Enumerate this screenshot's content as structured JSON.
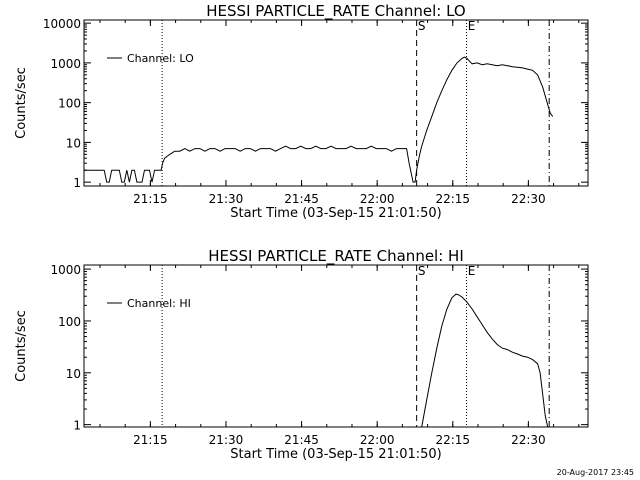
{
  "timestamp": "20-Aug-2017 23:45",
  "chart_data": [
    {
      "type": "line",
      "title": "HESSI PARTICLE_RATE Channel: LO",
      "xlabel": "Start Time (03-Sep-15 21:01:50)",
      "ylabel": "Counts/sec",
      "y_scale": "log",
      "xlim_minutes": [
        0,
        100
      ],
      "ylim": [
        0.8,
        12000
      ],
      "x_ticks": [
        {
          "minute": 13.17,
          "label": "21:15"
        },
        {
          "minute": 28.17,
          "label": "21:30"
        },
        {
          "minute": 43.17,
          "label": "21:45"
        },
        {
          "minute": 58.17,
          "label": "22:00"
        },
        {
          "minute": 73.17,
          "label": "22:15"
        },
        {
          "minute": 88.17,
          "label": "22:30"
        }
      ],
      "y_ticks": [
        {
          "value": 1,
          "label": "1"
        },
        {
          "value": 10,
          "label": "10"
        },
        {
          "value": 100,
          "label": "100"
        },
        {
          "value": 1000,
          "label": "1000"
        },
        {
          "value": 10000,
          "label": "10000"
        }
      ],
      "legend": {
        "label": "Channel: LO",
        "position": "top-left"
      },
      "markers": [
        {
          "minute": 15.5,
          "style": "dotted",
          "label": ""
        },
        {
          "minute": 66.0,
          "style": "dashed",
          "label": "S"
        },
        {
          "minute": 75.9,
          "style": "dotted",
          "label": "E"
        },
        {
          "minute": 92.3,
          "style": "dashdot",
          "label": ""
        }
      ],
      "series": [
        {
          "name": "Channel: LO",
          "x": [
            0,
            1,
            2,
            3,
            4,
            4.5,
            5,
            5.5,
            6,
            6.5,
            7,
            7.5,
            8,
            8.5,
            9,
            9.5,
            10,
            10.5,
            11,
            11.5,
            12,
            12.5,
            13,
            13.5,
            14,
            15.3,
            15.6,
            16,
            17,
            18,
            19,
            20,
            21,
            22,
            23,
            24,
            25,
            26,
            27,
            28,
            29,
            30,
            31,
            32,
            33,
            34,
            35,
            36,
            37,
            38,
            39,
            40,
            41,
            42,
            43,
            44,
            45,
            46,
            47,
            48,
            49,
            50,
            51,
            52,
            53,
            54,
            55,
            56,
            57,
            58,
            59,
            60,
            61,
            62,
            63,
            64,
            64.5,
            65,
            65.3,
            65.7,
            66,
            66.6,
            67,
            68,
            69,
            70,
            71,
            72,
            73,
            74,
            75,
            75.5,
            76,
            76.5,
            77,
            78,
            79,
            80,
            81,
            82,
            83,
            84,
            85,
            86,
            87,
            88,
            89,
            90,
            91,
            92,
            92.5,
            93
          ],
          "y": [
            2,
            2,
            2,
            2,
            2,
            1,
            1,
            2,
            2,
            2,
            2,
            1,
            1,
            2,
            1,
            2,
            2,
            1,
            1,
            1,
            2,
            2,
            2,
            1,
            2,
            2,
            3,
            4,
            5,
            6,
            6,
            7,
            6,
            7,
            7,
            6,
            7,
            7,
            6,
            7,
            7,
            7,
            6,
            7,
            7,
            6,
            7,
            7,
            7,
            6,
            7,
            8,
            7,
            7,
            8,
            7,
            7,
            8,
            7,
            7,
            8,
            7,
            7,
            7,
            8,
            7,
            7,
            7,
            8,
            7,
            7,
            7,
            6,
            7,
            7,
            7,
            3,
            1.5,
            1,
            1,
            2,
            5,
            8,
            20,
            45,
            100,
            200,
            380,
            650,
            1000,
            1300,
            1400,
            1300,
            1100,
            950,
            1000,
            900,
            950,
            900,
            850,
            900,
            850,
            800,
            780,
            750,
            700,
            650,
            500,
            250,
            90,
            55,
            45
          ]
        }
      ]
    },
    {
      "type": "line",
      "title": "HESSI PARTICLE_RATE Channel: HI",
      "xlabel": "Start Time (03-Sep-15 21:01:50)",
      "ylabel": "Counts/sec",
      "y_scale": "log",
      "xlim_minutes": [
        0,
        100
      ],
      "ylim": [
        0.9,
        1200
      ],
      "x_ticks": [
        {
          "minute": 13.17,
          "label": "21:15"
        },
        {
          "minute": 28.17,
          "label": "21:30"
        },
        {
          "minute": 43.17,
          "label": "21:45"
        },
        {
          "minute": 58.17,
          "label": "22:00"
        },
        {
          "minute": 73.17,
          "label": "22:15"
        },
        {
          "minute": 88.17,
          "label": "22:30"
        }
      ],
      "y_ticks": [
        {
          "value": 1,
          "label": "1"
        },
        {
          "value": 10,
          "label": "10"
        },
        {
          "value": 100,
          "label": "100"
        },
        {
          "value": 1000,
          "label": "1000"
        }
      ],
      "legend": {
        "label": "Channel: HI",
        "position": "top-left"
      },
      "markers": [
        {
          "minute": 15.5,
          "style": "dotted",
          "label": ""
        },
        {
          "minute": 66.0,
          "style": "dashed",
          "label": "S"
        },
        {
          "minute": 75.9,
          "style": "dotted",
          "label": "E"
        },
        {
          "minute": 92.3,
          "style": "dashdot",
          "label": ""
        }
      ],
      "series": [
        {
          "name": "Channel: HI",
          "x": [
            67.0,
            68,
            69,
            70,
            71,
            72,
            73,
            73.8,
            74.3,
            75,
            76,
            77,
            78,
            79,
            80,
            81,
            82,
            83,
            84,
            85,
            86,
            87,
            88,
            89,
            90,
            90.5,
            91,
            91.5,
            92
          ],
          "y": [
            0.9,
            3,
            10,
            30,
            80,
            170,
            280,
            330,
            320,
            290,
            230,
            170,
            120,
            85,
            60,
            45,
            35,
            30,
            28,
            25,
            23,
            21,
            20,
            18,
            15,
            10,
            4,
            1.5,
            0.9
          ]
        }
      ]
    }
  ]
}
